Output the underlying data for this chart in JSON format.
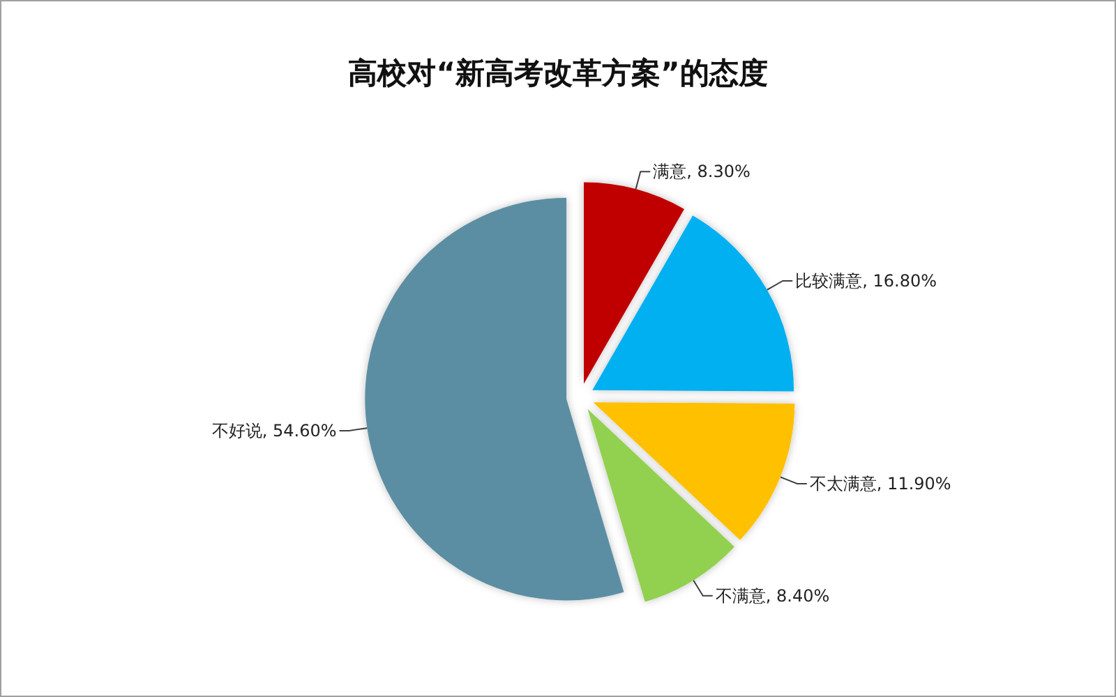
{
  "chart_data": {
    "type": "pie",
    "title": "高校对“新高考改革方案”的态度",
    "categories": [
      "满意",
      "比较满意",
      "不太满意",
      "不满意",
      "不好说"
    ],
    "values": [
      8.3,
      16.8,
      11.9,
      8.4,
      54.6
    ],
    "value_labels": [
      "8.30%",
      "16.80%",
      "11.90%",
      "8.40%",
      "54.60%"
    ],
    "colors": [
      "#c00000",
      "#00b0f0",
      "#ffc000",
      "#92d050",
      "#5b8ea3"
    ]
  }
}
